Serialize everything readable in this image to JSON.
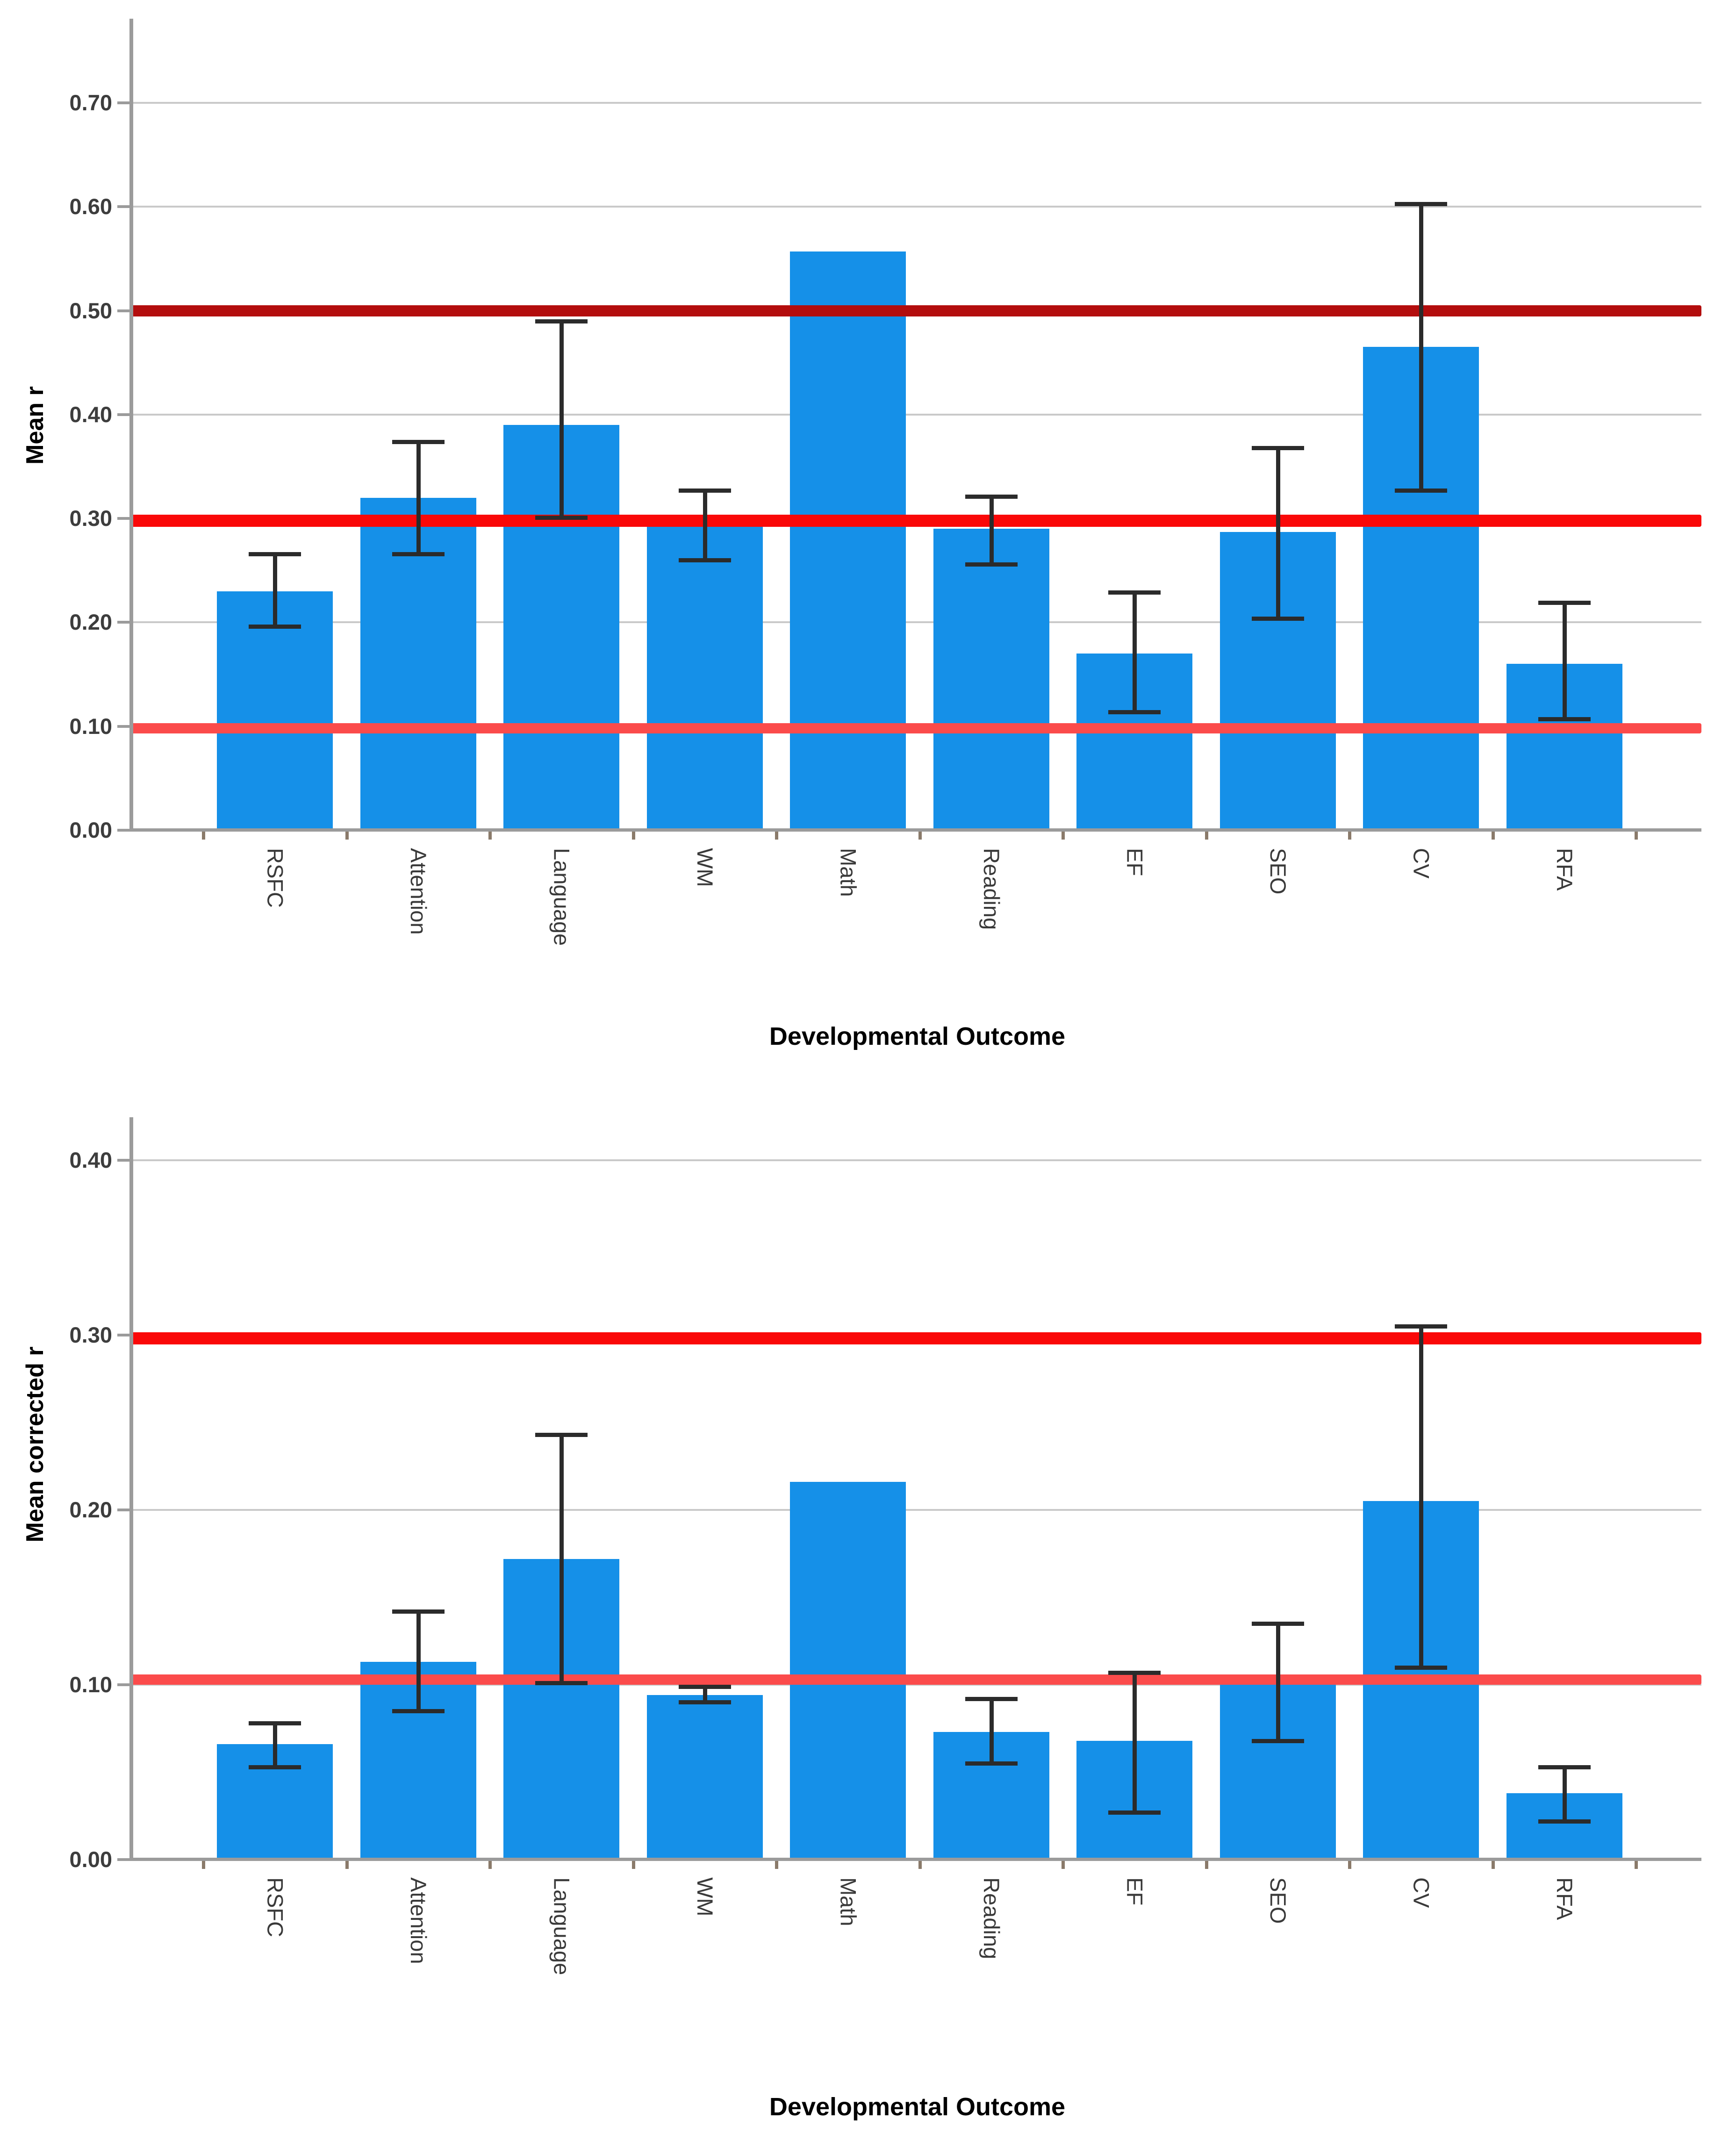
{
  "figure": {
    "background": "#ffffff",
    "bar_color": "#1590e8",
    "grid_color": "#c9c9c9",
    "axis_color": "#9b9b9b",
    "error_bar_color": "#2b2b2b",
    "tick_label_color": "#3d3d3d"
  },
  "chart_data": [
    {
      "type": "bar",
      "title": "",
      "xlabel": "Developmental Outcome",
      "ylabel": "Mean r",
      "categories": [
        "RSFC",
        "Attention",
        "Language",
        "WM",
        "Math",
        "Reading",
        "EF",
        "SEO",
        "CV",
        "RFA"
      ],
      "values": [
        0.23,
        0.32,
        0.39,
        0.293,
        0.557,
        0.29,
        0.17,
        0.287,
        0.465,
        0.16
      ],
      "error_low": [
        0.196,
        0.266,
        0.301,
        0.26,
        null,
        0.256,
        0.114,
        0.204,
        0.327,
        0.107
      ],
      "error_high": [
        0.266,
        0.374,
        0.49,
        0.327,
        null,
        0.321,
        0.229,
        0.368,
        0.603,
        0.219
      ],
      "yticks": [
        "0.00",
        "0.10",
        "0.20",
        "0.30",
        "0.40",
        "0.50",
        "0.60",
        "0.70"
      ],
      "ylim": [
        0,
        0.781
      ],
      "grid": true,
      "legend": "none",
      "reference_lines": [
        {
          "value": 0.5,
          "color": "#b30d0d",
          "thickness": 24,
          "label": "dark-red-reference-0.50"
        },
        {
          "value": 0.298,
          "color": "#fa0808",
          "thickness": 26,
          "label": "red-reference-0.30"
        },
        {
          "value": 0.098,
          "color": "#fb4b4b",
          "thickness": 22,
          "label": "light-red-reference-0.10"
        }
      ]
    },
    {
      "type": "bar",
      "title": "",
      "xlabel": "Developmental Outcome",
      "ylabel": "Mean corrected r",
      "categories": [
        "RSFC",
        "Attention",
        "Language",
        "WM",
        "Math",
        "Reading",
        "EF",
        "SEO",
        "CV",
        "RFA"
      ],
      "values": [
        0.066,
        0.113,
        0.172,
        0.094,
        0.216,
        0.073,
        0.068,
        0.1,
        0.205,
        0.038
      ],
      "error_low": [
        0.053,
        0.085,
        0.101,
        0.09,
        null,
        0.055,
        0.027,
        0.068,
        0.11,
        0.022
      ],
      "error_high": [
        0.078,
        0.142,
        0.243,
        0.099,
        null,
        0.092,
        0.107,
        0.135,
        0.305,
        0.053
      ],
      "yticks": [
        "0.00",
        "0.10",
        "0.20",
        "0.30",
        "0.40"
      ],
      "ylim": [
        0,
        0.4246
      ],
      "grid": true,
      "legend": "none",
      "reference_lines": [
        {
          "value": 0.298,
          "color": "#fa0808",
          "thickness": 26,
          "label": "red-reference-0.30"
        },
        {
          "value": 0.103,
          "color": "#fb4b4b",
          "thickness": 22,
          "label": "light-red-reference-0.10"
        }
      ]
    }
  ]
}
